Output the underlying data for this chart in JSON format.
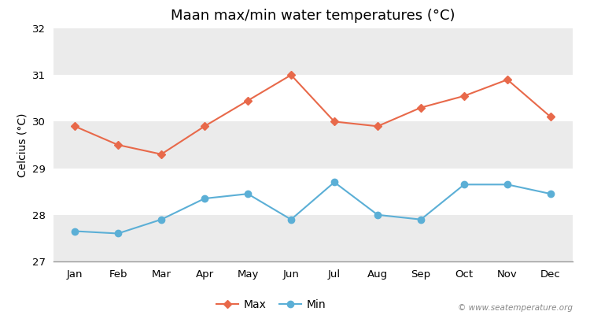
{
  "title": "Maan max/min water temperatures (°C)",
  "ylabel": "Celcius (°C)",
  "months": [
    "Jan",
    "Feb",
    "Mar",
    "Apr",
    "May",
    "Jun",
    "Jul",
    "Aug",
    "Sep",
    "Oct",
    "Nov",
    "Dec"
  ],
  "max_temps": [
    29.9,
    29.5,
    29.3,
    29.9,
    30.45,
    31.0,
    30.0,
    29.9,
    30.3,
    30.55,
    30.9,
    30.1
  ],
  "min_temps": [
    27.65,
    27.6,
    27.9,
    28.35,
    28.45,
    27.9,
    28.7,
    28.0,
    27.9,
    28.65,
    28.65,
    28.45
  ],
  "max_color": "#e8694a",
  "min_color": "#5bafd6",
  "ylim": [
    27,
    32
  ],
  "yticks": [
    27,
    28,
    29,
    30,
    31,
    32
  ],
  "background_color": "#ffffff",
  "plot_bg_color": "#ffffff",
  "band_color_light": "#ebebeb",
  "band_color_white": "#ffffff",
  "legend_labels": [
    "Max",
    "Min"
  ],
  "watermark": "© www.seatemperature.org",
  "title_fontsize": 13,
  "label_fontsize": 10,
  "tick_fontsize": 9.5
}
